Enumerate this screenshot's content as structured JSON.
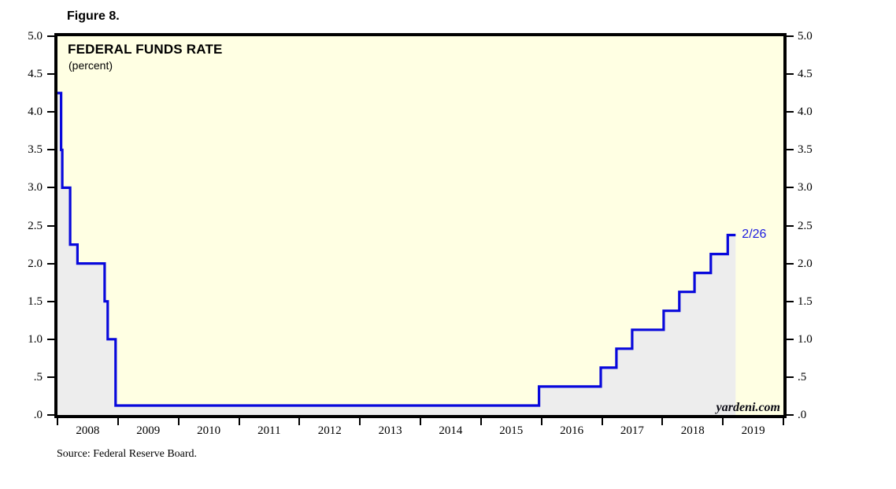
{
  "figure_label": "Figure 8.",
  "chart": {
    "title": "FEDERAL FUNDS RATE",
    "subtitle": "(percent)",
    "watermark": "yardeni.com",
    "source": "Source: Federal Reserve Board.",
    "colors": {
      "plot_background": "#FFFFE3",
      "area_fill": "#EDEDED",
      "line": "#0808DC",
      "annotation_text": "#1C1CE0",
      "frame": "#000000"
    }
  },
  "chart_data": {
    "type": "line",
    "line_style": "step",
    "area_fill": true,
    "title": "FEDERAL FUNDS RATE",
    "ylabel": "percent",
    "xlim": [
      2008,
      2020
    ],
    "ylim": [
      0,
      5
    ],
    "grid": false,
    "legend": false,
    "y_ticks": {
      "values": [
        5.0,
        4.5,
        4.0,
        3.5,
        3.0,
        2.5,
        2.0,
        1.5,
        1.0,
        0.5,
        0.0
      ],
      "labels": [
        "5.0",
        "4.5",
        "4.0",
        "3.5",
        "3.0",
        "2.5",
        "2.0",
        "1.5",
        "1.0",
        ".5",
        ".0"
      ],
      "sides": [
        "left",
        "right"
      ]
    },
    "x_ticks": {
      "values": [
        2008,
        2009,
        2010,
        2011,
        2012,
        2013,
        2014,
        2015,
        2016,
        2017,
        2018,
        2019,
        2020
      ],
      "year_labels": [
        "2008",
        "2009",
        "2010",
        "2011",
        "2012",
        "2013",
        "2014",
        "2015",
        "2016",
        "2017",
        "2018",
        "2019"
      ],
      "label_position": "between-ticks"
    },
    "series": [
      {
        "name": "Federal funds rate target (percent)",
        "steps": [
          [
            2008.0,
            4.25
          ],
          [
            2008.06,
            3.5
          ],
          [
            2008.08,
            3.0
          ],
          [
            2008.21,
            2.25
          ],
          [
            2008.33,
            2.0
          ],
          [
            2008.78,
            1.5
          ],
          [
            2008.83,
            1.0
          ],
          [
            2008.96,
            0.125
          ],
          [
            2015.96,
            0.375
          ],
          [
            2016.98,
            0.625
          ],
          [
            2017.24,
            0.875
          ],
          [
            2017.5,
            1.125
          ],
          [
            2018.02,
            1.375
          ],
          [
            2018.28,
            1.625
          ],
          [
            2018.53,
            1.875
          ],
          [
            2018.8,
            2.125
          ],
          [
            2019.08,
            2.375
          ]
        ],
        "end_x": 2019.21,
        "end_value": 2.375
      }
    ],
    "annotations": [
      {
        "text": "2/26",
        "x": 2019.21,
        "y": 2.375
      }
    ]
  }
}
